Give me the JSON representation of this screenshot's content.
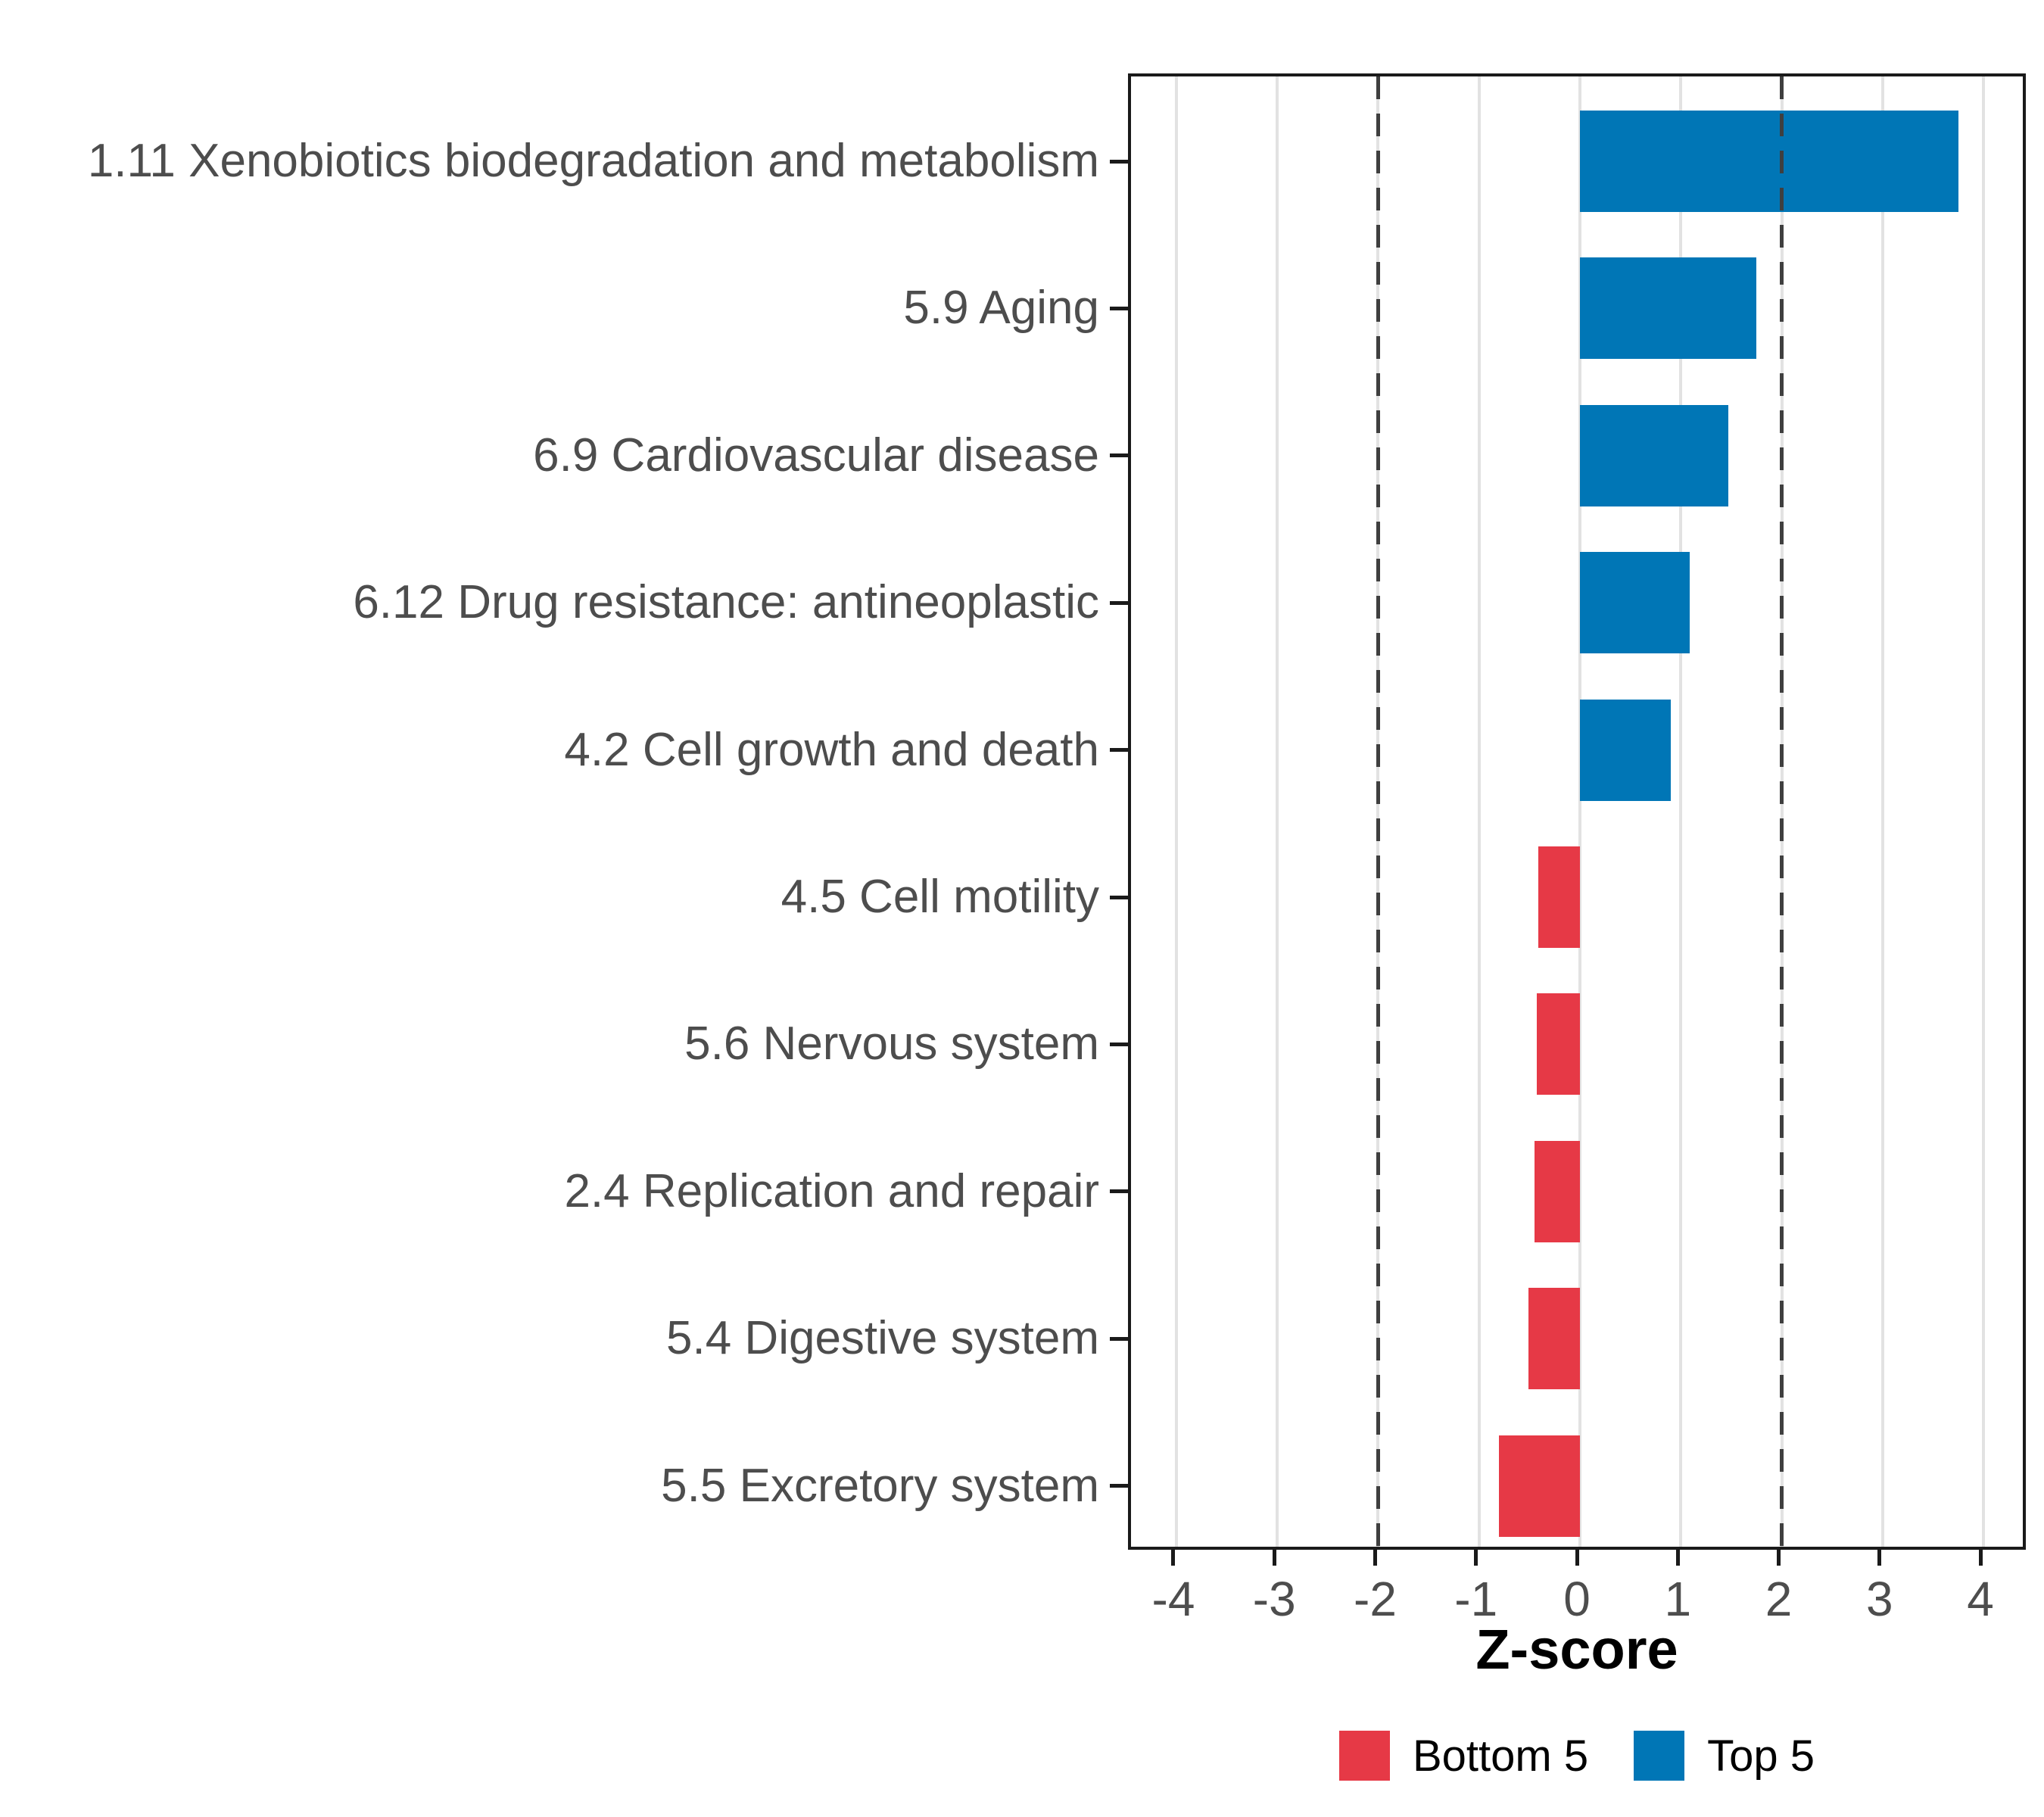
{
  "chart_data": {
    "type": "bar",
    "orientation": "horizontal",
    "title": "",
    "xlabel": "Z-score",
    "ylabel": "",
    "categories": [
      "1.11 Xenobiotics biodegradation and metabolism",
      "5.9 Aging",
      "6.9 Cardiovascular disease",
      "6.12 Drug resistance: antineoplastic",
      "4.2 Cell growth and death",
      "4.5 Cell motility",
      "5.6 Nervous system",
      "2.4 Replication and repair",
      "5.4 Digestive system",
      "5.5 Excretory system"
    ],
    "values": [
      3.75,
      1.75,
      1.47,
      1.09,
      0.9,
      -0.41,
      -0.43,
      -0.45,
      -0.51,
      -0.8
    ],
    "groups": [
      "Top 5",
      "Top 5",
      "Top 5",
      "Top 5",
      "Top 5",
      "Bottom 5",
      "Bottom 5",
      "Bottom 5",
      "Bottom 5",
      "Bottom 5"
    ],
    "x_ticks": [
      "-4",
      "-3",
      "-2",
      "-1",
      "0",
      "1",
      "2",
      "3",
      "4"
    ],
    "x_tick_values": [
      -4,
      -3,
      -2,
      -1,
      0,
      1,
      2,
      3,
      4
    ],
    "xlim": [
      -4.45,
      4.45
    ],
    "reference_lines": [
      -2,
      2
    ],
    "grid": "major-x-only",
    "legend": {
      "position": "bottom",
      "items": [
        {
          "label": "Bottom 5",
          "color": "#e63946"
        },
        {
          "label": "Top 5",
          "color": "#0076b6"
        }
      ]
    },
    "colors": {
      "top5": "#0076b6",
      "bottom5": "#e63946",
      "gridline": "#e2e2e2",
      "reference_line": "#3f3f3f",
      "axis_text": "#4d4d4d",
      "panel_border": "#1a1a1a",
      "background": "#ffffff"
    }
  }
}
